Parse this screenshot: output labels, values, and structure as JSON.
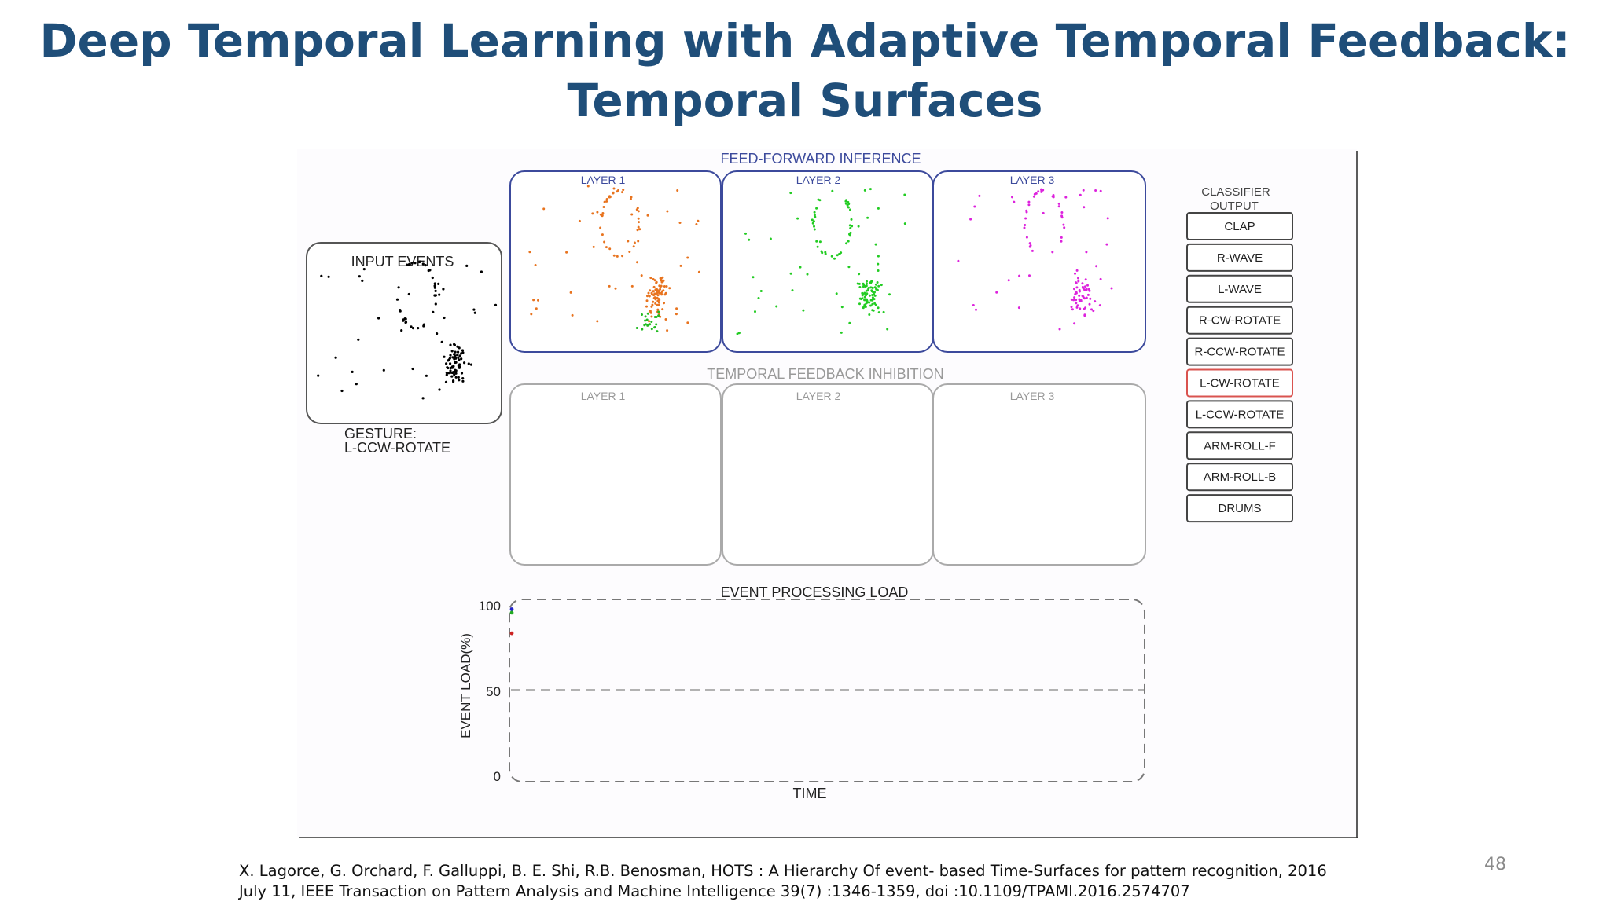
{
  "slide": {
    "title_line1": "Deep Temporal Learning with Adaptive Temporal Feedback:",
    "title_line2": "Temporal Surfaces",
    "page_number": "48",
    "citation_line1": "X. Lagorce, G. Orchard, F. Galluppi, B. E. Shi, R.B. Benosman, HOTS : A Hierarchy Of event- based Time-Surfaces for pattern recognition, 2016",
    "citation_line2": "July 11, IEEE Transaction on Pattern Analysis and Machine Intelligence 39(7) :1346-1359, doi :10.1109/TPAMI.2016.2574707"
  },
  "figure": {
    "input_panel": {
      "title": "INPUT EVENTS",
      "gesture_label": "GESTURE:",
      "gesture_value": "L-CCW-ROTATE",
      "dot_color": "#000000"
    },
    "feedforward": {
      "title": "FEED-FORWARD INFERENCE",
      "frame_color": "#3c4a9c",
      "layers": [
        {
          "label": "LAYER 1",
          "dot_color": "#e8731e",
          "secondary_color": "#22bb22"
        },
        {
          "label": "LAYER 2",
          "dot_color": "#22cc22"
        },
        {
          "label": "LAYER 3",
          "dot_color": "#dd22dd"
        }
      ]
    },
    "feedback": {
      "title": "TEMPORAL FEEDBACK INHIBITION",
      "layers": [
        {
          "label": "LAYER 1"
        },
        {
          "label": "LAYER 2"
        },
        {
          "label": "LAYER 3"
        }
      ]
    },
    "classifier": {
      "title_line1": "CLASSIFIER",
      "title_line2": "OUTPUT",
      "highlight_color": "#d9534f",
      "items": [
        {
          "label": "CLAP",
          "highlighted": false
        },
        {
          "label": "R-WAVE",
          "highlighted": false
        },
        {
          "label": "L-WAVE",
          "highlighted": false
        },
        {
          "label": "R-CW-ROTATE",
          "highlighted": false
        },
        {
          "label": "R-CCW-ROTATE",
          "highlighted": false
        },
        {
          "label": "L-CW-ROTATE",
          "highlighted": true
        },
        {
          "label": "L-CCW-ROTATE",
          "highlighted": false
        },
        {
          "label": "ARM-ROLL-F",
          "highlighted": false
        },
        {
          "label": "ARM-ROLL-B",
          "highlighted": false
        },
        {
          "label": "DRUMS",
          "highlighted": false
        }
      ]
    },
    "load_chart": {
      "title": "EVENT PROCESSING LOAD",
      "ylabel": "EVENT LOAD(%)",
      "xlabel": "TIME",
      "yticks": [
        "100",
        "50",
        "0"
      ],
      "ylim": [
        0,
        100
      ],
      "points": [
        {
          "y": 97,
          "color": "#2222cc"
        },
        {
          "y": 95,
          "color": "#22aa22"
        },
        {
          "y": 83,
          "color": "#cc2222"
        }
      ]
    }
  }
}
